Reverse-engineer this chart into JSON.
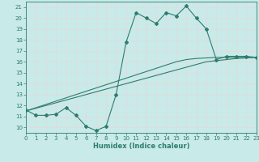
{
  "xlabel": "Humidex (Indice chaleur)",
  "bg_color": "#c8eae8",
  "grid_color": "#dff0ee",
  "line_color": "#2e7d6e",
  "x_values": [
    0,
    1,
    2,
    3,
    4,
    5,
    6,
    7,
    8,
    9,
    10,
    11,
    12,
    13,
    14,
    15,
    16,
    17,
    18,
    19,
    20,
    21,
    22,
    23
  ],
  "y_main": [
    11.6,
    11.1,
    11.1,
    11.2,
    11.8,
    11.1,
    10.1,
    9.7,
    10.1,
    13.0,
    17.8,
    20.5,
    20.0,
    19.5,
    20.5,
    20.2,
    21.1,
    20.0,
    19.0,
    16.2,
    16.5,
    16.5,
    16.5,
    16.4
  ],
  "y_line1": [
    11.5,
    11.75,
    12.0,
    12.25,
    12.5,
    12.75,
    13.0,
    13.25,
    13.5,
    13.75,
    14.0,
    14.25,
    14.5,
    14.75,
    15.0,
    15.25,
    15.5,
    15.75,
    16.0,
    16.1,
    16.2,
    16.3,
    16.35,
    16.4
  ],
  "y_line2": [
    11.5,
    11.8,
    12.1,
    12.4,
    12.7,
    13.0,
    13.3,
    13.6,
    13.9,
    14.2,
    14.5,
    14.8,
    15.1,
    15.4,
    15.7,
    16.0,
    16.2,
    16.3,
    16.35,
    16.4,
    16.4,
    16.4,
    16.4,
    16.4
  ],
  "ylim": [
    9.5,
    21.5
  ],
  "xlim": [
    0,
    23
  ],
  "yticks": [
    10,
    11,
    12,
    13,
    14,
    15,
    16,
    17,
    18,
    19,
    20,
    21
  ],
  "xticks": [
    0,
    1,
    2,
    3,
    4,
    5,
    6,
    7,
    8,
    9,
    10,
    11,
    12,
    13,
    14,
    15,
    16,
    17,
    18,
    19,
    20,
    21,
    22,
    23
  ],
  "tick_color": "#2e7d6e",
  "marker": "D",
  "markersize": 2.0,
  "linewidth": 0.8,
  "tick_fontsize": 5.0,
  "xlabel_fontsize": 6.0
}
